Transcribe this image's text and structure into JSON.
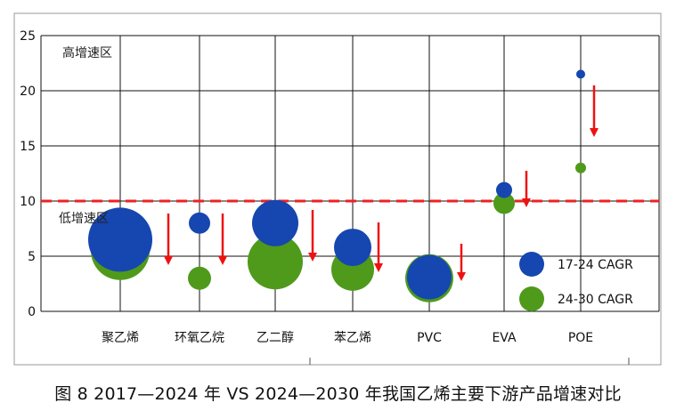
{
  "caption": "图 8  2017—2024 年 VS 2024—2030 年我国乙烯主要下游产品增速对比",
  "chart_data": {
    "type": "scatter",
    "title": "",
    "xlabel": "",
    "ylabel": "",
    "categories": [
      "聚乙烯",
      "环氧乙烷",
      "乙二醇",
      "苯乙烯",
      "PVC",
      "EVA",
      "POE"
    ],
    "ylim": [
      0,
      25
    ],
    "yticks": [
      0,
      5,
      10,
      15,
      20,
      25
    ],
    "grid": true,
    "threshold": 10,
    "zone_labels": {
      "high": "高增速区",
      "low": "低增速区"
    },
    "legend_position": "right",
    "series": [
      {
        "name": "17-24 CAGR",
        "color": "#1646b0",
        "values": [
          6.5,
          8.0,
          8.0,
          5.8,
          3.1,
          11.0,
          21.5
        ]
      },
      {
        "name": "24-30 CAGR",
        "color": "#4f9a1a",
        "values": [
          5.5,
          3.0,
          4.5,
          3.8,
          3.0,
          9.8,
          13.0
        ]
      }
    ],
    "arrow_color": "#ee1111"
  }
}
